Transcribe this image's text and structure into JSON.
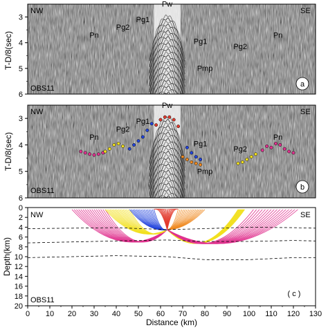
{
  "figure": {
    "panels": [
      {
        "id": "a",
        "panel_label": "a",
        "station": "OBS11",
        "left_label": "NW",
        "right_label": "SE",
        "ylabel": "T-D/8(sec)",
        "yticks": [
          "3",
          "4",
          "5",
          "6"
        ],
        "phases": [
          "Pn",
          "Pg2",
          "Pg1",
          "Pw",
          "Pg1",
          "Pmp",
          "Pg2",
          "Pn"
        ]
      },
      {
        "id": "b",
        "panel_label": "b",
        "station": "OBS11",
        "left_label": "NW",
        "right_label": "SE",
        "ylabel": "T-D/8(sec)",
        "yticks": [
          "3",
          "4",
          "5",
          "6"
        ],
        "phases": [
          "Pn",
          "Pg2",
          "Pg1",
          "Pw",
          "Pg1",
          "Pmp",
          "Pg2",
          "Pn"
        ]
      },
      {
        "id": "c",
        "panel_label": "( c )",
        "station": "OBS11",
        "left_label": "NW",
        "right_label": "SE",
        "ylabel": "Depth(km)",
        "yticks": [
          "0",
          "2",
          "4",
          "6",
          "8",
          "10",
          "12",
          "14",
          "16",
          "18",
          "20"
        ]
      }
    ],
    "xlabel": "Distance (km)",
    "xticks": [
      "0",
      "10",
      "20",
      "30",
      "40",
      "50",
      "60",
      "70",
      "80",
      "90",
      "100",
      "110",
      "120",
      "130"
    ]
  },
  "chart_data": [
    {
      "type": "scatter",
      "panel": "a",
      "xlim": [
        0,
        130
      ],
      "ylim": [
        6,
        2.5
      ],
      "note_phases": [
        {
          "name": "Pn",
          "x": 30,
          "y": 3.8
        },
        {
          "name": "Pg2",
          "x": 43,
          "y": 3.5
        },
        {
          "name": "Pg1",
          "x": 52,
          "y": 3.2
        },
        {
          "name": "Pw",
          "x": 63,
          "y": 2.6
        },
        {
          "name": "Pg1",
          "x": 78,
          "y": 4.05
        },
        {
          "name": "Pmp",
          "x": 80,
          "y": 5.1
        },
        {
          "name": "Pg2",
          "x": 96,
          "y": 4.25
        },
        {
          "name": "Pn",
          "x": 113,
          "y": 3.8
        }
      ]
    },
    {
      "type": "scatter",
      "panel": "b",
      "xlim": [
        0,
        130
      ],
      "ylim": [
        6,
        2.5
      ],
      "series": [
        {
          "name": "Pn",
          "color": "#e0338f",
          "x": [
            24,
            26,
            28,
            30,
            32,
            34,
            106,
            108,
            110,
            112,
            114,
            116,
            118,
            120
          ],
          "y": [
            4.25,
            4.3,
            4.35,
            4.38,
            4.35,
            4.3,
            4.2,
            4.05,
            4.1,
            3.95,
            4.0,
            4.15,
            4.25,
            4.3
          ]
        },
        {
          "name": "Pg2",
          "color": "#f2e020",
          "x": [
            35,
            37,
            39,
            41,
            43,
            95,
            97,
            99,
            101,
            103
          ],
          "y": [
            4.25,
            4.15,
            4.0,
            3.95,
            4.05,
            4.7,
            4.65,
            4.55,
            4.45,
            4.35
          ]
        },
        {
          "name": "Pg1",
          "color": "#2244dd",
          "x": [
            46,
            48,
            50,
            52,
            54,
            56,
            72,
            74,
            76,
            78
          ],
          "y": [
            4.15,
            4.0,
            3.85,
            3.7,
            3.45,
            3.2,
            4.1,
            4.3,
            4.45,
            4.55
          ]
        },
        {
          "name": "Pw",
          "color": "#e23b2e",
          "x": [
            58,
            60,
            62,
            64,
            66,
            68
          ],
          "y": [
            3.25,
            3.05,
            2.95,
            2.95,
            3.05,
            3.3
          ]
        },
        {
          "name": "Pmp",
          "color": "#f08a20",
          "x": [
            70,
            72,
            74,
            76,
            78
          ],
          "y": [
            4.45,
            4.55,
            4.65,
            4.7,
            4.75
          ]
        }
      ]
    },
    {
      "type": "line",
      "panel": "c",
      "xlim": [
        0,
        130
      ],
      "ylim": [
        20,
        0
      ],
      "source_x": 63,
      "source_depth": 4.5,
      "interfaces": [
        {
          "name": "interface-1",
          "x": [
            0,
            20,
            40,
            63,
            80,
            100,
            120,
            130
          ],
          "y": [
            4.3,
            4.2,
            4.1,
            4.5,
            4.3,
            4.0,
            4.1,
            4.2
          ]
        },
        {
          "name": "interface-2",
          "x": [
            0,
            20,
            40,
            63,
            80,
            100,
            120,
            130
          ],
          "y": [
            7.2,
            7.0,
            6.8,
            6.6,
            6.9,
            6.9,
            6.7,
            6.8
          ]
        },
        {
          "name": "interface-3",
          "x": [
            0,
            20,
            40,
            63,
            80,
            100,
            120,
            130
          ],
          "y": [
            10.2,
            10.0,
            9.8,
            10.0,
            10.6,
            10.6,
            10.2,
            10.2
          ]
        }
      ],
      "ray_fans": [
        {
          "name": "Pn",
          "color": "#e0338f",
          "x_from": 20,
          "x_to": 35,
          "turn_depth": 10.0,
          "side": "left"
        },
        {
          "name": "Pg2",
          "color": "#f2e020",
          "x_from": 35,
          "x_to": 46,
          "turn_depth": 7.0,
          "side": "left"
        },
        {
          "name": "Pg1",
          "color": "#2244dd",
          "x_from": 46,
          "x_to": 57,
          "turn_depth": 5.0,
          "side": "left"
        },
        {
          "name": "Pw",
          "color": "#e23b2e",
          "x_from": 57,
          "x_to": 68,
          "turn_depth": 0.5,
          "side": "both"
        },
        {
          "name": "Pmp",
          "color": "#f08a20",
          "x_from": 68,
          "x_to": 80,
          "turn_depth": 4.5,
          "side": "right"
        },
        {
          "name": "Pg2",
          "color": "#f2e020",
          "x_from": 95,
          "x_to": 98,
          "turn_depth": 10.5,
          "side": "right"
        },
        {
          "name": "Pn",
          "color": "#e0338f",
          "x_from": 102,
          "x_to": 122,
          "turn_depth": 10.6,
          "side": "right"
        }
      ]
    }
  ]
}
